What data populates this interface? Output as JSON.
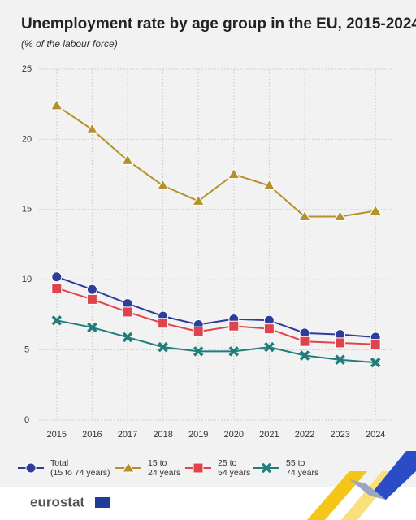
{
  "chart_data": {
    "type": "line",
    "title": "Unemployment rate by age group in the EU, 2015-2024",
    "subtitle": "(% of the labour force)",
    "categories": [
      "2015",
      "2016",
      "2017",
      "2018",
      "2019",
      "2020",
      "2021",
      "2022",
      "2023",
      "2024"
    ],
    "series": [
      {
        "name": "Total\n(15 to 74 years)",
        "color": "#2e3d9a",
        "marker": "circle",
        "values": [
          10.2,
          9.3,
          8.3,
          7.4,
          6.8,
          7.2,
          7.1,
          6.2,
          6.1,
          5.9
        ]
      },
      {
        "name": "15 to\n24 years",
        "color": "#b3922d",
        "marker": "triangle",
        "values": [
          22.4,
          20.7,
          18.5,
          16.7,
          15.6,
          17.5,
          16.7,
          14.5,
          14.5,
          14.9
        ]
      },
      {
        "name": "25 to\n54 years",
        "color": "#e0434c",
        "marker": "square",
        "values": [
          9.4,
          8.6,
          7.7,
          6.9,
          6.3,
          6.7,
          6.5,
          5.6,
          5.5,
          5.4
        ]
      },
      {
        "name": "55 to\n74 years",
        "color": "#1f7d7b",
        "marker": "cross",
        "values": [
          7.1,
          6.6,
          5.9,
          5.2,
          4.9,
          4.9,
          5.2,
          4.6,
          4.3,
          4.1
        ]
      }
    ],
    "ylim": [
      0,
      25
    ],
    "yticks": [
      0,
      5,
      10,
      15,
      20,
      25
    ],
    "grid": true,
    "logo": "eurostat"
  }
}
